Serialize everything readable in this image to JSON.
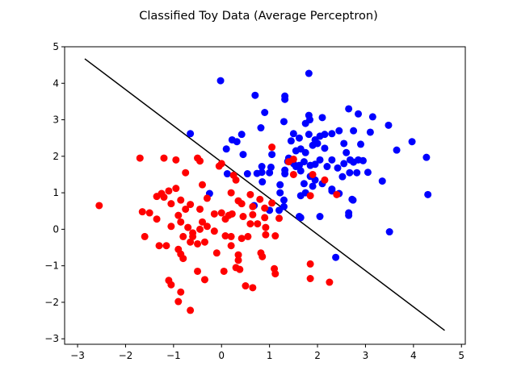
{
  "chart_data": {
    "type": "scatter",
    "title": "Classified Toy Data (Average Perceptron)",
    "xlabel": "",
    "ylabel": "",
    "xlim": [
      -3.27,
      5.08
    ],
    "ylim": [
      -3.15,
      5.0
    ],
    "xticks": [
      -3,
      -2,
      -1,
      0,
      1,
      2,
      3,
      4,
      5
    ],
    "yticks": [
      -3,
      -2,
      -1,
      0,
      1,
      2,
      3,
      4,
      5
    ],
    "grid": false,
    "legend": "none",
    "colors": {
      "class_pos": "#0000ff",
      "class_neg": "#ff0000",
      "boundary": "#000000"
    },
    "series": [
      {
        "color": "#0000ff",
        "points": [
          [
            -0.02,
            4.07
          ],
          [
            0.7,
            3.67
          ],
          [
            1.32,
            3.56
          ],
          [
            1.32,
            3.65
          ],
          [
            1.82,
            4.27
          ],
          [
            0.9,
            3.2
          ],
          [
            1.3,
            2.95
          ],
          [
            1.82,
            3.12
          ],
          [
            1.84,
            3.0
          ],
          [
            2.1,
            3.06
          ],
          [
            2.65,
            3.3
          ],
          [
            2.85,
            3.16
          ],
          [
            3.15,
            3.08
          ],
          [
            3.48,
            2.85
          ],
          [
            1.75,
            2.9
          ],
          [
            0.82,
            2.78
          ],
          [
            1.5,
            2.62
          ],
          [
            1.45,
            2.42
          ],
          [
            1.62,
            2.5
          ],
          [
            1.82,
            2.6
          ],
          [
            1.95,
            2.45
          ],
          [
            2.05,
            2.55
          ],
          [
            2.15,
            2.6
          ],
          [
            2.3,
            2.62
          ],
          [
            2.45,
            2.7
          ],
          [
            2.75,
            2.7
          ],
          [
            3.1,
            2.66
          ],
          [
            0.22,
            2.45
          ],
          [
            0.42,
            2.6
          ],
          [
            0.32,
            2.4
          ],
          [
            -0.65,
            2.62
          ],
          [
            0.1,
            2.2
          ],
          [
            0.45,
            2.05
          ],
          [
            1.05,
            2.05
          ],
          [
            1.4,
            1.95
          ],
          [
            1.55,
            2.15
          ],
          [
            1.65,
            2.2
          ],
          [
            1.75,
            2.1
          ],
          [
            1.9,
            2.3
          ],
          [
            2.0,
            2.35
          ],
          [
            2.15,
            2.22
          ],
          [
            2.55,
            2.35
          ],
          [
            2.6,
            2.1
          ],
          [
            2.9,
            2.33
          ],
          [
            3.65,
            2.17
          ],
          [
            3.97,
            2.4
          ],
          [
            4.27,
            1.97
          ],
          [
            1.38,
            1.86
          ],
          [
            1.5,
            1.8
          ],
          [
            1.62,
            1.75
          ],
          [
            1.72,
            1.85
          ],
          [
            1.85,
            1.75
          ],
          [
            1.95,
            1.78
          ],
          [
            2.05,
            1.9
          ],
          [
            2.2,
            1.72
          ],
          [
            2.3,
            1.9
          ],
          [
            2.42,
            1.68
          ],
          [
            2.55,
            1.8
          ],
          [
            2.68,
            1.9
          ],
          [
            2.75,
            1.84
          ],
          [
            2.85,
            1.9
          ],
          [
            2.95,
            1.88
          ],
          [
            3.05,
            1.56
          ],
          [
            2.82,
            1.55
          ],
          [
            2.67,
            1.55
          ],
          [
            2.52,
            1.44
          ],
          [
            0.84,
            1.72
          ],
          [
            0.84,
            1.56
          ],
          [
            0.74,
            1.53
          ],
          [
            0.12,
            1.52
          ],
          [
            0.54,
            1.52
          ],
          [
            1.0,
            1.55
          ],
          [
            1.03,
            1.7
          ],
          [
            1.32,
            1.62
          ],
          [
            1.32,
            1.52
          ],
          [
            1.55,
            1.72
          ],
          [
            1.65,
            1.6
          ],
          [
            1.85,
            1.45
          ],
          [
            1.95,
            1.35
          ],
          [
            2.1,
            1.25
          ],
          [
            1.9,
            1.18
          ],
          [
            2.3,
            1.05
          ],
          [
            2.3,
            1.1
          ],
          [
            1.72,
            1.25
          ],
          [
            1.22,
            1.22
          ],
          [
            1.65,
            0.92
          ],
          [
            1.75,
            1.0
          ],
          [
            2.45,
            0.98
          ],
          [
            2.72,
            0.82
          ],
          [
            2.74,
            0.8
          ],
          [
            3.35,
            1.32
          ],
          [
            0.85,
            1.3
          ],
          [
            1.22,
            1.0
          ],
          [
            1.3,
            0.8
          ],
          [
            1.3,
            0.62
          ],
          [
            1.2,
            0.52
          ],
          [
            1.0,
            0.52
          ],
          [
            0.68,
            0.65
          ],
          [
            1.62,
            0.35
          ],
          [
            1.65,
            0.32
          ],
          [
            2.05,
            0.35
          ],
          [
            2.65,
            0.45
          ],
          [
            2.65,
            0.38
          ],
          [
            -0.25,
            0.98
          ],
          [
            3.5,
            -0.07
          ],
          [
            4.3,
            0.95
          ],
          [
            2.38,
            -0.77
          ]
        ]
      },
      {
        "color": "#ff0000",
        "points": [
          [
            -2.55,
            0.65
          ],
          [
            -1.7,
            1.95
          ],
          [
            -1.2,
            1.95
          ],
          [
            -0.95,
            1.9
          ],
          [
            -0.5,
            1.95
          ],
          [
            -0.45,
            1.87
          ],
          [
            -0.75,
            1.55
          ],
          [
            -0.05,
            1.73
          ],
          [
            0.0,
            1.8
          ],
          [
            0.25,
            1.48
          ],
          [
            0.3,
            1.35
          ],
          [
            -0.4,
            1.22
          ],
          [
            -1.35,
            0.9
          ],
          [
            -1.25,
            0.98
          ],
          [
            -1.1,
            1.05
          ],
          [
            -1.2,
            0.88
          ],
          [
            -0.95,
            1.12
          ],
          [
            -0.85,
            0.8
          ],
          [
            -0.65,
            0.68
          ],
          [
            -0.3,
            0.85
          ],
          [
            0.2,
            1.0
          ],
          [
            0.35,
            0.78
          ],
          [
            0.42,
            0.7
          ],
          [
            0.6,
            0.95
          ],
          [
            0.65,
            0.62
          ],
          [
            0.8,
            0.82
          ],
          [
            0.9,
            0.58
          ],
          [
            1.05,
            2.25
          ],
          [
            1.5,
            1.92
          ],
          [
            1.4,
            1.85
          ],
          [
            1.5,
            1.5
          ],
          [
            1.9,
            1.5
          ],
          [
            2.15,
            1.35
          ],
          [
            1.85,
            0.92
          ],
          [
            2.4,
            0.95
          ],
          [
            -1.65,
            0.48
          ],
          [
            -1.5,
            0.45
          ],
          [
            -1.05,
            0.7
          ],
          [
            -1.35,
            0.28
          ],
          [
            -0.75,
            0.55
          ],
          [
            -0.45,
            0.55
          ],
          [
            -0.9,
            0.38
          ],
          [
            -0.85,
            0.2
          ],
          [
            -0.7,
            0.05
          ],
          [
            -0.45,
            0.0
          ],
          [
            -0.4,
            0.2
          ],
          [
            -0.3,
            0.08
          ],
          [
            -0.15,
            0.42
          ],
          [
            0.0,
            0.45
          ],
          [
            0.08,
            0.28
          ],
          [
            0.15,
            0.38
          ],
          [
            0.22,
            0.42
          ],
          [
            0.45,
            0.35
          ],
          [
            0.65,
            0.4
          ],
          [
            0.75,
            0.15
          ],
          [
            0.9,
            0.32
          ],
          [
            0.92,
            0.05
          ],
          [
            1.2,
            0.3
          ],
          [
            1.05,
            0.72
          ],
          [
            0.6,
            0.15
          ],
          [
            1.12,
            -0.18
          ],
          [
            0.92,
            -0.15
          ],
          [
            0.55,
            -0.2
          ],
          [
            0.42,
            -0.25
          ],
          [
            0.2,
            -0.2
          ],
          [
            0.08,
            -0.18
          ],
          [
            -1.05,
            0.08
          ],
          [
            -0.65,
            -0.35
          ],
          [
            -0.6,
            -0.2
          ],
          [
            -0.5,
            -0.4
          ],
          [
            -0.35,
            -0.35
          ],
          [
            -0.15,
            -0.05
          ],
          [
            -1.15,
            -0.45
          ],
          [
            -1.3,
            -0.45
          ],
          [
            -1.6,
            -0.2
          ],
          [
            -0.8,
            -0.2
          ],
          [
            -0.6,
            -0.1
          ],
          [
            0.2,
            -0.45
          ],
          [
            0.35,
            -0.7
          ],
          [
            0.82,
            -0.65
          ],
          [
            0.85,
            -0.75
          ],
          [
            0.35,
            -0.85
          ],
          [
            0.3,
            -1.05
          ],
          [
            0.38,
            -1.1
          ],
          [
            0.05,
            -1.15
          ],
          [
            -0.9,
            -0.55
          ],
          [
            -0.85,
            -0.68
          ],
          [
            -0.8,
            -0.8
          ],
          [
            -0.5,
            -1.15
          ],
          [
            -0.35,
            -1.38
          ],
          [
            -1.1,
            -1.4
          ],
          [
            -1.05,
            -1.52
          ],
          [
            -0.85,
            -1.72
          ],
          [
            -0.9,
            -1.98
          ],
          [
            -0.65,
            -2.22
          ],
          [
            -0.1,
            -0.65
          ],
          [
            1.1,
            -1.08
          ],
          [
            1.12,
            -1.22
          ],
          [
            1.85,
            -0.95
          ],
          [
            1.85,
            -1.35
          ],
          [
            2.25,
            -1.45
          ],
          [
            0.5,
            -1.55
          ],
          [
            0.65,
            -1.6
          ]
        ]
      }
    ],
    "boundary_line": {
      "x": [
        -2.85,
        4.65
      ],
      "y": [
        4.67,
        -2.77
      ]
    }
  }
}
